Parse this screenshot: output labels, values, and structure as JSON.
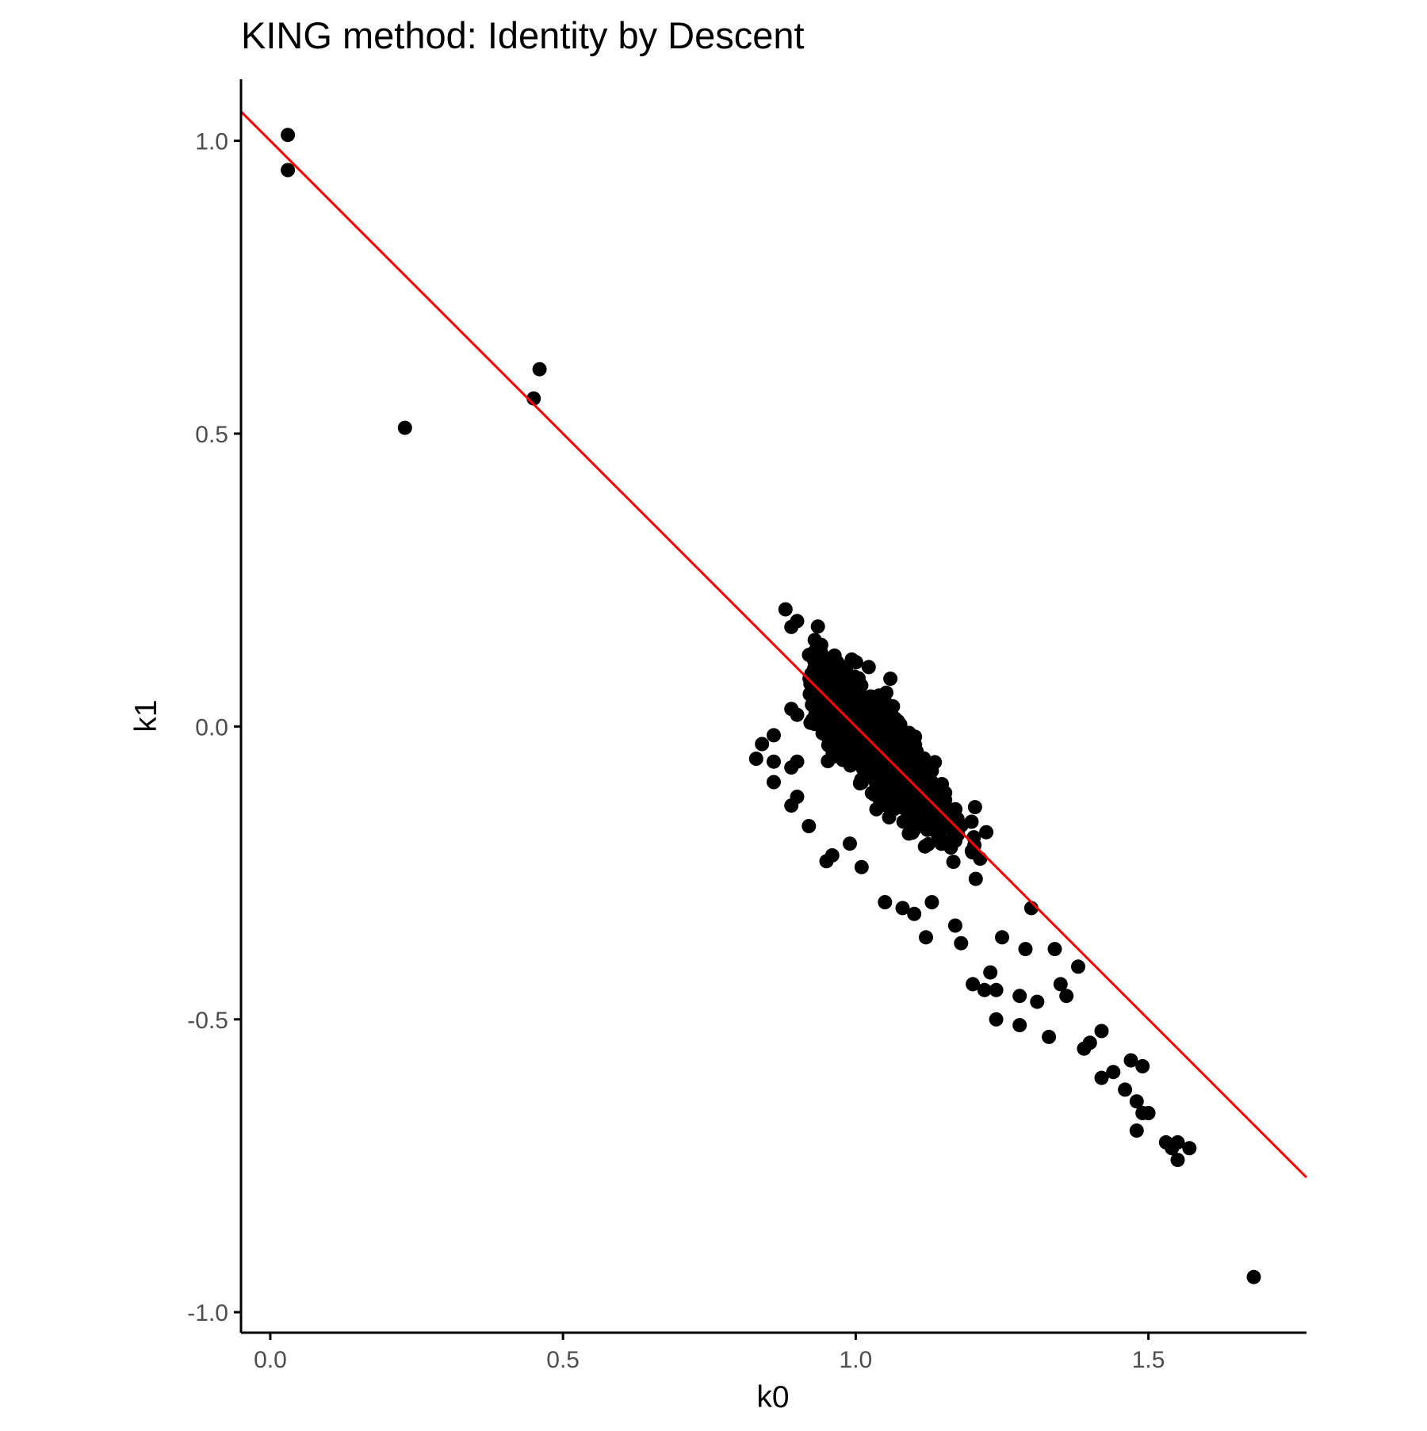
{
  "chart_data": {
    "type": "scatter",
    "title": "KING method: Identity by Descent",
    "xlabel": "k0",
    "ylabel": "k1",
    "xlim": [
      -0.05,
      1.77
    ],
    "ylim": [
      -1.035,
      1.105
    ],
    "x_ticks": [
      0.0,
      0.5,
      1.0,
      1.5
    ],
    "y_ticks": [
      -1.0,
      -0.5,
      0.0,
      0.5,
      1.0
    ],
    "x_tick_labels": [
      "0.0",
      "0.5",
      "1.0",
      "1.5"
    ],
    "y_tick_labels": [
      "-1.0",
      "-0.5",
      "0.0",
      "0.5",
      "1.0"
    ],
    "grid": false,
    "legend": "none",
    "colors": {
      "points": "#000000",
      "reference_line": "#ff0000",
      "axis": "#000000",
      "tick_label": "#4d4d4d"
    },
    "reference_line": {
      "intercept": 1.0,
      "slope": -1.0
    },
    "outlier_points": [
      [
        0.03,
        1.01
      ],
      [
        0.03,
        0.95
      ],
      [
        0.23,
        0.51
      ],
      [
        0.45,
        0.56
      ],
      [
        0.46,
        0.61
      ],
      [
        0.88,
        0.2
      ],
      [
        0.89,
        0.17
      ],
      [
        0.9,
        0.18
      ],
      [
        0.83,
        -0.055
      ],
      [
        0.84,
        -0.03
      ],
      [
        0.86,
        -0.015
      ],
      [
        0.86,
        -0.06
      ],
      [
        0.86,
        -0.095
      ],
      [
        0.89,
        -0.07
      ],
      [
        0.9,
        -0.06
      ],
      [
        0.9,
        -0.12
      ],
      [
        0.89,
        -0.135
      ],
      [
        0.89,
        0.03
      ],
      [
        0.9,
        0.02
      ],
      [
        0.92,
        -0.17
      ],
      [
        0.95,
        -0.23
      ],
      [
        0.96,
        -0.22
      ],
      [
        0.99,
        -0.2
      ],
      [
        1.01,
        -0.24
      ],
      [
        1.05,
        -0.3
      ],
      [
        1.08,
        -0.31
      ],
      [
        1.1,
        -0.32
      ],
      [
        1.12,
        -0.36
      ],
      [
        1.13,
        -0.3
      ],
      [
        1.17,
        -0.34
      ],
      [
        1.18,
        -0.37
      ],
      [
        1.2,
        -0.44
      ],
      [
        1.22,
        -0.45
      ],
      [
        1.23,
        -0.42
      ],
      [
        1.24,
        -0.45
      ],
      [
        1.24,
        -0.5
      ],
      [
        1.25,
        -0.36
      ],
      [
        1.28,
        -0.51
      ],
      [
        1.28,
        -0.46
      ],
      [
        1.29,
        -0.38
      ],
      [
        1.3,
        -0.31
      ],
      [
        1.31,
        -0.47
      ],
      [
        1.33,
        -0.53
      ],
      [
        1.34,
        -0.38
      ],
      [
        1.35,
        -0.44
      ],
      [
        1.36,
        -0.46
      ],
      [
        1.38,
        -0.41
      ],
      [
        1.39,
        -0.55
      ],
      [
        1.4,
        -0.54
      ],
      [
        1.42,
        -0.52
      ],
      [
        1.42,
        -0.6
      ],
      [
        1.44,
        -0.59
      ],
      [
        1.46,
        -0.62
      ],
      [
        1.47,
        -0.57
      ],
      [
        1.48,
        -0.64
      ],
      [
        1.48,
        -0.69
      ],
      [
        1.49,
        -0.66
      ],
      [
        1.49,
        -0.58
      ],
      [
        1.5,
        -0.66
      ],
      [
        1.53,
        -0.71
      ],
      [
        1.54,
        -0.72
      ],
      [
        1.55,
        -0.71
      ],
      [
        1.55,
        -0.74
      ],
      [
        1.57,
        -0.72
      ],
      [
        1.68,
        -0.94
      ]
    ],
    "cluster": {
      "description_free": true,
      "n": 1400,
      "center": [
        1.03,
        -0.03
      ],
      "spread_along_line": 0.09,
      "spread_perpendicular": 0.045,
      "x_range": [
        0.92,
        1.32
      ]
    }
  }
}
